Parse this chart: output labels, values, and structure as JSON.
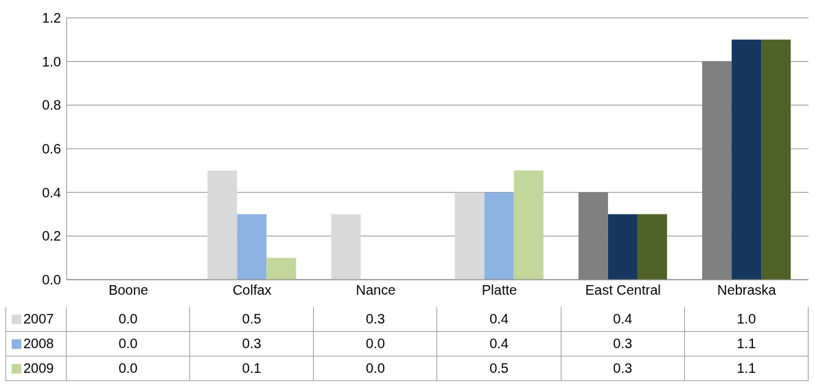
{
  "chart_data": {
    "type": "bar",
    "categories": [
      "Boone",
      "Colfax",
      "Nance",
      "Platte",
      "East Central",
      "Nebraska"
    ],
    "series": [
      {
        "name": "2007",
        "color": "#d9d9d9",
        "colors": [
          "#d9d9d9",
          "#d9d9d9",
          "#d9d9d9",
          "#d9d9d9",
          "#808080",
          "#808080"
        ],
        "values": [
          0.0,
          0.5,
          0.3,
          0.4,
          0.4,
          1.0
        ],
        "value_labels": [
          "0.0",
          "0.5",
          "0.3",
          "0.4",
          "0.4",
          "1.0"
        ]
      },
      {
        "name": "2008",
        "color": "#8db3e2",
        "colors": [
          "#8db3e2",
          "#8db3e2",
          "#8db3e2",
          "#8db3e2",
          "#17375e",
          "#17375e"
        ],
        "values": [
          0.0,
          0.3,
          0.0,
          0.4,
          0.3,
          1.1
        ],
        "value_labels": [
          "0.0",
          "0.3",
          "0.0",
          "0.4",
          "0.3",
          "1.1"
        ]
      },
      {
        "name": "2009",
        "color": "#c3d69b",
        "colors": [
          "#c3d69b",
          "#c3d69b",
          "#c3d69b",
          "#c3d69b",
          "#4f6228",
          "#4f6228"
        ],
        "values": [
          0.0,
          0.1,
          0.0,
          0.5,
          0.3,
          1.1
        ],
        "value_labels": [
          "0.0",
          "0.1",
          "0.0",
          "0.5",
          "0.3",
          "1.1"
        ]
      }
    ],
    "ylim": [
      0,
      1.2
    ],
    "yticks": [
      {
        "value": 0,
        "label": "0.0"
      },
      {
        "value": 0.2,
        "label": "0.2"
      },
      {
        "value": 0.4,
        "label": "0.4"
      },
      {
        "value": 0.6,
        "label": "0.6"
      },
      {
        "value": 0.8,
        "label": "0.8"
      },
      {
        "value": 1.0,
        "label": "1.0"
      },
      {
        "value": 1.2,
        "label": "1.2"
      }
    ],
    "grid": "y",
    "legend": "bottom"
  }
}
